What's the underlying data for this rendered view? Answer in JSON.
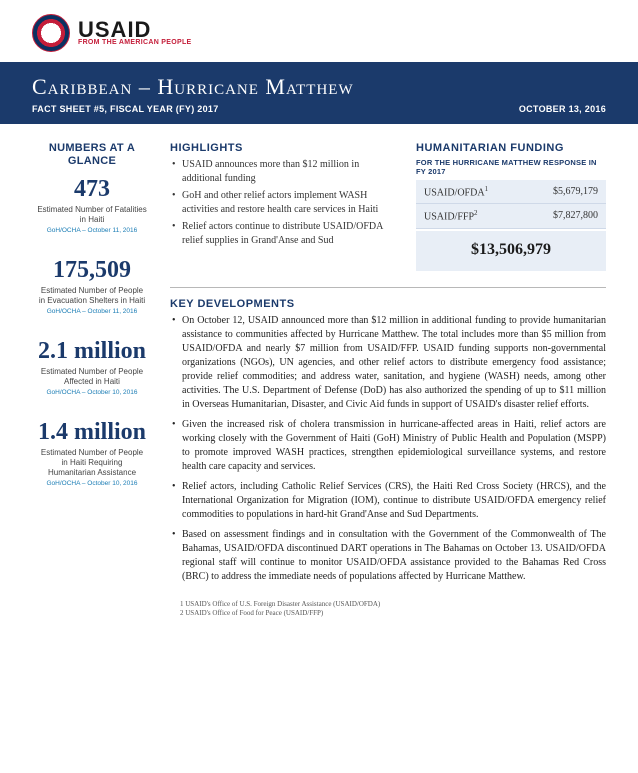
{
  "logo": {
    "main": "USAID",
    "sub": "FROM THE AMERICAN PEOPLE"
  },
  "banner": {
    "title": "Caribbean – Hurricane Matthew",
    "subtitle": "FACT SHEET #5, FISCAL YEAR (FY) 2017",
    "date": "OCTOBER 13, 2016"
  },
  "nag": {
    "heading": "NUMBERS AT A GLANCE",
    "stats": [
      {
        "value": "473",
        "label": "Estimated Number of Fatalities in Haiti",
        "source": "GoH/OCHA – October 11, 2016"
      },
      {
        "value": "175,509",
        "label": "Estimated Number of People in Evacuation Shelters in Haiti",
        "source": "GoH/OCHA – October 11, 2016"
      },
      {
        "value": "2.1 million",
        "label": "Estimated Number of People Affected in Haiti",
        "source": "GoH/OCHA – October 10, 2016"
      },
      {
        "value": "1.4 million",
        "label": "Estimated Number of People in Haiti Requiring Humanitarian Assistance",
        "source": "GoH/OCHA – October 10, 2016"
      }
    ]
  },
  "highlights": {
    "heading": "HIGHLIGHTS",
    "items": [
      "USAID announces more than $12 million in additional funding",
      "GoH and other relief actors implement WASH activities and restore health care services in Haiti",
      "Relief actors continue to distribute USAID/OFDA relief supplies in Grand'Anse and Sud"
    ]
  },
  "funding": {
    "heading": "HUMANITARIAN FUNDING",
    "sub": "FOR THE HURRICANE MATTHEW RESPONSE IN FY 2017",
    "rows": [
      {
        "label": "USAID/OFDA",
        "sup": "1",
        "amount": "$5,679,179"
      },
      {
        "label": "USAID/FFP",
        "sup": "2",
        "amount": "$7,827,800"
      }
    ],
    "total": "$13,506,979",
    "bg_color": "#e8eef6"
  },
  "key": {
    "heading": "KEY DEVELOPMENTS",
    "items": [
      "On October 12, USAID announced more than $12 million in additional funding to provide humanitarian assistance to communities affected by Hurricane Matthew.  The total includes more than $5 million from USAID/OFDA and nearly $7 million from USAID/FFP.  USAID funding supports non-governmental organizations (NGOs), UN agencies, and other relief actors to distribute emergency food assistance; provide relief commodities; and address water, sanitation, and hygiene (WASH) needs, among other activities.  The U.S. Department of Defense (DoD) has also authorized the spending of up to $11 million in Overseas Humanitarian, Disaster, and Civic Aid funds in support of USAID's disaster relief efforts.",
      "Given the increased risk of cholera transmission in hurricane-affected areas in Haiti, relief actors are working closely with the Government of Haiti (GoH) Ministry of Public Health and Population (MSPP) to promote improved WASH practices, strengthen epidemiological surveillance systems, and restore health care capacity and services.",
      "Relief actors, including Catholic Relief Services (CRS), the Haiti Red Cross Society (HRCS), and the International Organization for Migration (IOM), continue to distribute USAID/OFDA emergency relief commodities to populations in hard-hit Grand'Anse and Sud Departments.",
      "Based on assessment findings and in consultation with the Government of the Commonwealth of The Bahamas, USAID/OFDA discontinued DART operations in The Bahamas on October 13.  USAID/OFDA regional staff will continue to monitor USAID/OFDA assistance provided to the Bahamas Red Cross (BRC) to address the immediate needs of populations affected by Hurricane Matthew."
    ]
  },
  "footnotes": [
    "1 USAID's Office of U.S. Foreign Disaster Assistance (USAID/OFDA)",
    "2 USAID's Office of Food for Peace (USAID/FFP)"
  ],
  "colors": {
    "brand_blue": "#1b3a6b",
    "accent_red": "#c41e3a",
    "panel_blue": "#e8eef6",
    "link_blue": "#1b7db5"
  }
}
